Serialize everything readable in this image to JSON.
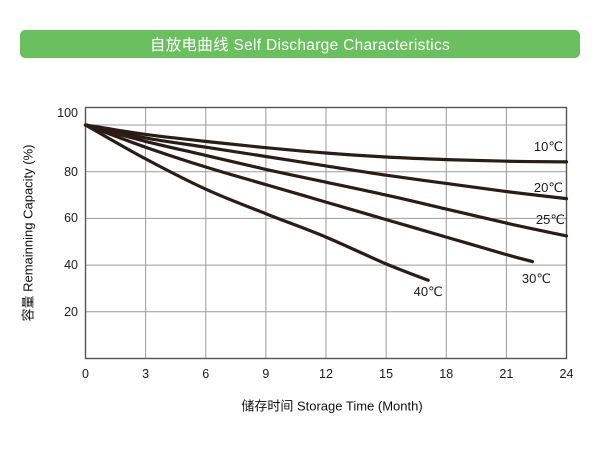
{
  "header": {
    "title": "自放电曲线 Self Discharge Characteristics",
    "bg_color": "#6abf5e",
    "text_color": "#ffffff"
  },
  "chart_data": {
    "type": "line",
    "title": "自放电曲线 Self Discharge Characteristics",
    "xlabel": "储存时间 Storage Time (Month)",
    "ylabel": "容量 Remainning Capacity (%)",
    "x_ticks": [
      0,
      3,
      6,
      9,
      12,
      15,
      18,
      21,
      24
    ],
    "y_ticks": [
      20,
      40,
      60,
      80,
      100
    ],
    "xlim": [
      0,
      24
    ],
    "ylim": [
      0,
      107.5
    ],
    "grid": true,
    "legend_position": "inline-labels",
    "curve_color": "#2b1d16",
    "grid_color": "#9b9b9b",
    "axis_color": "#555555",
    "series": [
      {
        "name": "10C",
        "label": "10℃",
        "label_at": [
          23.1,
          90.5
        ],
        "points": [
          [
            0,
            100
          ],
          [
            3,
            96
          ],
          [
            6,
            93
          ],
          [
            9,
            90.3
          ],
          [
            12,
            88
          ],
          [
            15,
            86.3
          ],
          [
            18,
            85.2
          ],
          [
            21,
            84.5
          ],
          [
            24,
            84.2
          ]
        ]
      },
      {
        "name": "20C",
        "label": "20℃",
        "label_at": [
          23.1,
          73
        ],
        "points": [
          [
            0,
            100
          ],
          [
            3,
            94.5
          ],
          [
            6,
            90.5
          ],
          [
            9,
            86.5
          ],
          [
            12,
            82.5
          ],
          [
            15,
            78.5
          ],
          [
            18,
            75
          ],
          [
            21,
            71.5
          ],
          [
            24,
            68.5
          ]
        ]
      },
      {
        "name": "25C",
        "label": "25℃",
        "label_at": [
          23.2,
          59.5
        ],
        "points": [
          [
            0,
            100
          ],
          [
            3,
            93
          ],
          [
            6,
            87
          ],
          [
            9,
            81
          ],
          [
            12,
            75.5
          ],
          [
            15,
            70
          ],
          [
            18,
            64
          ],
          [
            21,
            58
          ],
          [
            24,
            52.5
          ]
        ]
      },
      {
        "name": "30C",
        "label": "30℃",
        "label_at": [
          22.5,
          34
        ],
        "points": [
          [
            0,
            100
          ],
          [
            3,
            90.5
          ],
          [
            6,
            82
          ],
          [
            9,
            74.5
          ],
          [
            12,
            67
          ],
          [
            15,
            59.5
          ],
          [
            18,
            52
          ],
          [
            21,
            44.5
          ],
          [
            22.3,
            41.5
          ]
        ]
      },
      {
        "name": "40C",
        "label": "40℃",
        "label_at": [
          17.1,
          28.5
        ],
        "points": [
          [
            0,
            100
          ],
          [
            3,
            85.5
          ],
          [
            6,
            72.5
          ],
          [
            9,
            62
          ],
          [
            12,
            52
          ],
          [
            15,
            40.5
          ],
          [
            17.1,
            33.5
          ]
        ]
      }
    ]
  }
}
